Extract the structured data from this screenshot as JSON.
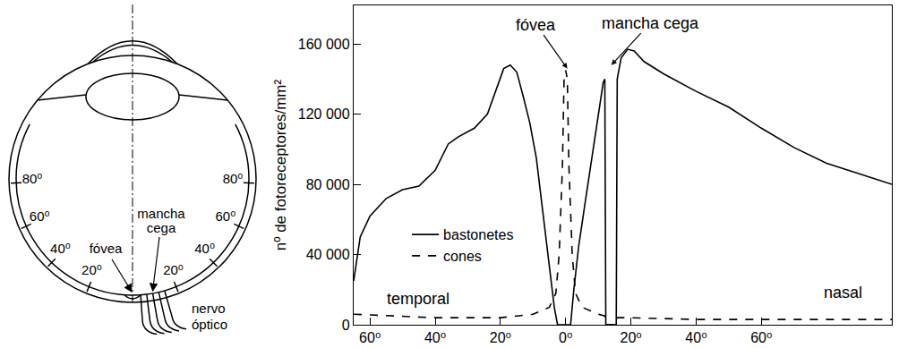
{
  "diagram": {
    "angle_labels": [
      "20⁰",
      "40⁰",
      "60⁰",
      "80⁰"
    ],
    "fovea": "fóvea",
    "blind_spot": "mancha cega",
    "nerve": "nervo óptico"
  },
  "chart_data": {
    "type": "line",
    "y_label": "nº de fotoreceptores/mm²",
    "annotations": [
      "fóvea",
      "mancha cega",
      "temporal",
      "nasal"
    ],
    "series": [
      {
        "name": "bastonetes",
        "color": "#000000",
        "line_style": "solid",
        "x": [
          -65,
          -63,
          -60,
          -55,
          -50,
          -45,
          -40,
          -36,
          -33,
          -28,
          -24,
          -21,
          -19,
          -17,
          -15,
          -13,
          -11,
          -9,
          -7,
          -5,
          -3.5,
          -2.5,
          1.5,
          2.5,
          4,
          6,
          8,
          10,
          11.5,
          12,
          12.3,
          15.5,
          15.8,
          17,
          19,
          21,
          24,
          30,
          40,
          50,
          60,
          70,
          80,
          90,
          100
        ],
        "values": [
          25000,
          50000,
          62000,
          72000,
          77000,
          79000,
          88000,
          103000,
          107000,
          112000,
          120000,
          135000,
          146000,
          148000,
          144000,
          130000,
          115000,
          95000,
          65000,
          35000,
          10000,
          0,
          0,
          20000,
          45000,
          70000,
          95000,
          118000,
          138000,
          140000,
          0,
          0,
          140000,
          152000,
          157000,
          156000,
          150000,
          143000,
          133000,
          124000,
          112000,
          101000,
          92000,
          86000,
          80000
        ]
      },
      {
        "name": "cones",
        "color": "#000000",
        "line_style": "dashed",
        "x": [
          -65,
          -50,
          -40,
          -20,
          -10,
          -5,
          -3,
          -2,
          -1,
          -0.5,
          0,
          0.5,
          1,
          2,
          3,
          5,
          10,
          12,
          12.3,
          15.5,
          15.8,
          20,
          40,
          60,
          80,
          100
        ],
        "values": [
          6000,
          5000,
          4000,
          4000,
          6000,
          10000,
          18000,
          40000,
          90000,
          140000,
          145000,
          140000,
          90000,
          40000,
          18000,
          10000,
          6000,
          5000,
          0,
          0,
          4000,
          4000,
          3000,
          3000,
          3000,
          3000
        ]
      }
    ],
    "xlim": [
      -65,
      100
    ],
    "xticks": [
      {
        "value": -60,
        "label": "60⁰"
      },
      {
        "value": -40,
        "label": "40⁰"
      },
      {
        "value": -20,
        "label": "20⁰"
      },
      {
        "value": 0,
        "label": "0⁰"
      },
      {
        "value": 20,
        "label": "20⁰"
      },
      {
        "value": 40,
        "label": "40⁰"
      },
      {
        "value": 60,
        "label": "60⁰"
      }
    ],
    "ylim": [
      0,
      182000
    ],
    "yticks": [
      0,
      {
        "value": 40000,
        "label": "40 000"
      },
      {
        "value": 80000,
        "label": "80 000"
      },
      {
        "value": 120000,
        "label": "120 000"
      },
      {
        "value": 160000,
        "label": "160 000"
      }
    ],
    "grid": false,
    "legend": "lower left"
  }
}
